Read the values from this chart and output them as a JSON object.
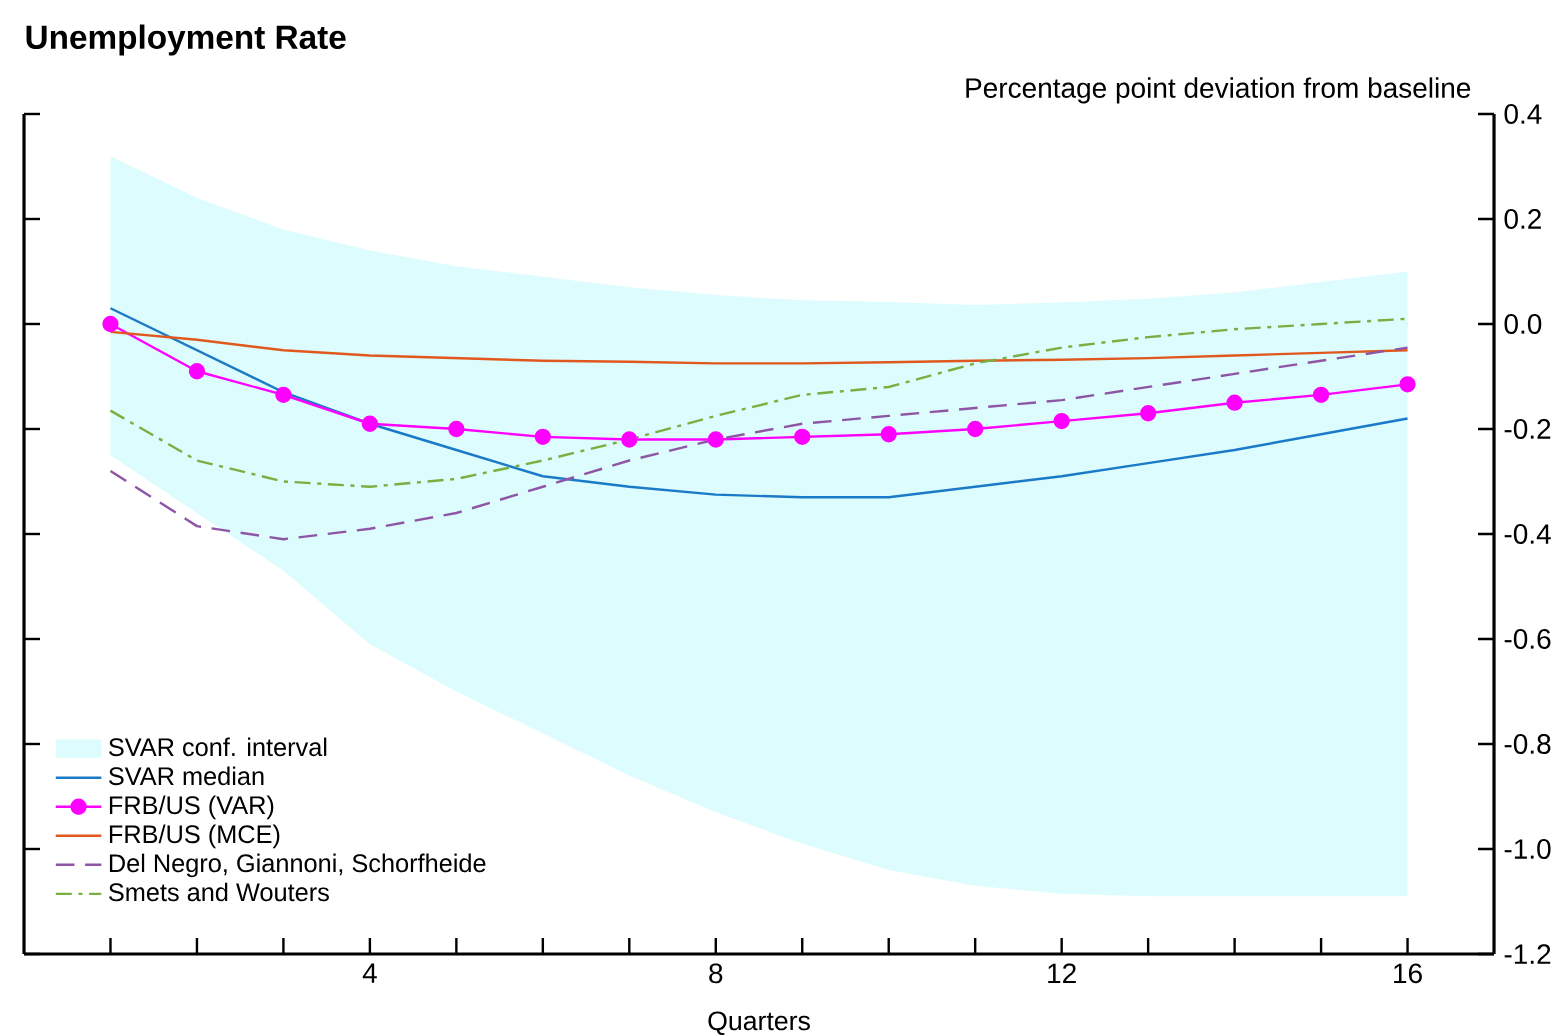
{
  "chart_data": {
    "type": "line",
    "title": "Unemployment Rate",
    "ylabel": "Percentage point deviation from baseline",
    "xlabel": "Quarters",
    "x": [
      1,
      2,
      3,
      4,
      5,
      6,
      7,
      8,
      9,
      10,
      11,
      12,
      13,
      14,
      15,
      16
    ],
    "xlim": [
      0,
      17
    ],
    "xticks": [
      {
        "value": 1,
        "label": null
      },
      {
        "value": 2,
        "label": null
      },
      {
        "value": 3,
        "label": null
      },
      4,
      {
        "value": 5,
        "label": null
      },
      {
        "value": 6,
        "label": null
      },
      {
        "value": 7,
        "label": null
      },
      8,
      {
        "value": 9,
        "label": null
      },
      {
        "value": 10,
        "label": null
      },
      {
        "value": 11,
        "label": null
      },
      12,
      {
        "value": 13,
        "label": null
      },
      {
        "value": 14,
        "label": null
      },
      {
        "value": 15,
        "label": null
      },
      16
    ],
    "ylim": [
      -1.2,
      0.4
    ],
    "yticks": [
      -1.2,
      {
        "value": -1,
        "label": "-1.0"
      },
      -0.8,
      -0.6,
      -0.4,
      -0.2,
      {
        "value": 0,
        "label": "0.0"
      },
      0.2,
      0.4
    ],
    "legend": "bottom left",
    "ref_lines": [
      {
        "axis": "y",
        "value": 0,
        "color": "#8c9a9a"
      }
    ],
    "series": [
      {
        "name": "SVAR conf. interval",
        "type": "area",
        "color": "#ddfcfd",
        "values": [
          null,
          null,
          null,
          null,
          null,
          null,
          null,
          null,
          null,
          null,
          null,
          null,
          null,
          null,
          null,
          null
        ],
        "lower": [
          -0.25,
          -0.36,
          -0.47,
          -0.61,
          -0.7,
          -0.78,
          -0.86,
          -0.93,
          -0.99,
          -1.04,
          -1.07,
          -1.085,
          -1.09,
          -1.09,
          -1.09,
          -1.09
        ],
        "upper": [
          0.32,
          0.24,
          0.18,
          0.14,
          0.11,
          0.09,
          0.07,
          0.055,
          0.045,
          0.042,
          0.036,
          0.041,
          0.048,
          0.06,
          0.08,
          0.1
        ]
      },
      {
        "name": "SVAR median",
        "color": "#1a7ac8",
        "marker": "none",
        "line_style": "solid",
        "values": [
          0.03,
          -0.05,
          -0.13,
          -0.19,
          -0.24,
          -0.29,
          -0.31,
          -0.325,
          -0.33,
          -0.33,
          -0.31,
          -0.29,
          -0.265,
          -0.24,
          -0.21,
          -0.18
        ]
      },
      {
        "name": "FRB/US (VAR)",
        "color": "#ff00ff",
        "marker": "circle",
        "line_style": "solid",
        "values": [
          0.0,
          -0.09,
          -0.135,
          -0.19,
          -0.2,
          -0.215,
          -0.22,
          -0.22,
          -0.215,
          -0.21,
          -0.2,
          -0.185,
          -0.17,
          -0.15,
          -0.135,
          -0.115
        ]
      },
      {
        "name": "FRB/US (MCE)",
        "color": "#e0581e",
        "marker": "none",
        "line_style": "solid",
        "values": [
          -0.015,
          -0.03,
          -0.05,
          -0.06,
          -0.065,
          -0.07,
          -0.072,
          -0.075,
          -0.075,
          -0.073,
          -0.07,
          -0.068,
          -0.065,
          -0.06,
          -0.055,
          -0.05
        ]
      },
      {
        "name": "Del Negro, Giannoni, Schorfheide",
        "color": "#8e55a5",
        "marker": "none",
        "line_style": "dashed",
        "values": [
          -0.28,
          -0.385,
          -0.41,
          -0.39,
          -0.36,
          -0.31,
          -0.26,
          -0.22,
          -0.19,
          -0.175,
          -0.16,
          -0.145,
          -0.12,
          -0.095,
          -0.07,
          -0.045
        ]
      },
      {
        "name": "Smets and Wouters",
        "color": "#77b041",
        "marker": "none",
        "line_style": "dashdot",
        "values": [
          -0.165,
          -0.26,
          -0.3,
          -0.31,
          -0.295,
          -0.26,
          -0.22,
          -0.175,
          -0.135,
          -0.12,
          -0.075,
          -0.045,
          -0.025,
          -0.01,
          0.0,
          0.01
        ]
      }
    ]
  }
}
